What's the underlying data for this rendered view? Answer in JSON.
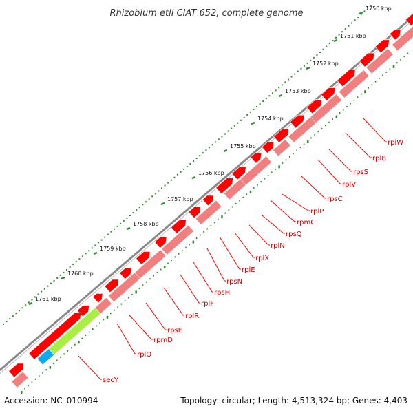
{
  "title": "Rhizobium etli CIAT 652, complete genome",
  "footer": {
    "accession": "Accession: NC_010994",
    "summary": "Topology: circular; Length: 4,513,324 bp; Genes: 4,403"
  },
  "colors": {
    "backbone": "#888888",
    "ticks": "#2e8b2e",
    "gene_forward": "#ff0000",
    "gene_reverse": "#f08080",
    "label_line": "#ff0000",
    "label_text": "#cc0000",
    "highlight_green": "#aaee44",
    "highlight_blue": "#11aaee"
  },
  "ticks": [
    {
      "label": "1750 kbp"
    },
    {
      "label": "1751 kbp"
    },
    {
      "label": "1752 kbp"
    },
    {
      "label": "1753 kbp"
    },
    {
      "label": "1754 kbp"
    },
    {
      "label": "1755 kbp"
    },
    {
      "label": "1756 kbp"
    },
    {
      "label": "1757 kbp"
    },
    {
      "label": "1758 kbp"
    },
    {
      "label": "1759 kbp"
    },
    {
      "label": "1760 kbp"
    },
    {
      "label": "1761 kbp"
    }
  ],
  "genes": [
    {
      "label": "rplW"
    },
    {
      "label": "rplB"
    },
    {
      "label": "rpsS"
    },
    {
      "label": "rplV"
    },
    {
      "label": "rpsC"
    },
    {
      "label": "rplP"
    },
    {
      "label": "rpmC"
    },
    {
      "label": "rpsQ"
    },
    {
      "label": "rplN"
    },
    {
      "label": "rplX"
    },
    {
      "label": "rplE"
    },
    {
      "label": "rpsN"
    },
    {
      "label": "rpsH"
    },
    {
      "label": "rplF"
    },
    {
      "label": "rplR"
    },
    {
      "label": "rpsE"
    },
    {
      "label": "rpmD"
    },
    {
      "label": "rplO"
    },
    {
      "label": "secY"
    }
  ]
}
